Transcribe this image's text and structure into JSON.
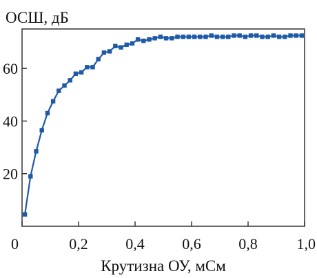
{
  "chart_data": {
    "type": "line",
    "title": "",
    "ylabel": "ОСШ, дБ",
    "xlabel": "Крутизна ОУ, мСм",
    "xlim": [
      0,
      1.0
    ],
    "ylim": [
      0,
      75
    ],
    "grid": false,
    "x_ticks": [
      {
        "value": 0,
        "label": "0"
      },
      {
        "value": 0.2,
        "label": "0,2"
      },
      {
        "value": 0.4,
        "label": "0,4"
      },
      {
        "value": 0.6,
        "label": "0,6"
      },
      {
        "value": 0.8,
        "label": "0,8"
      },
      {
        "value": 1.0,
        "label": "1,0"
      }
    ],
    "y_ticks": [
      {
        "value": 20,
        "label": "20"
      },
      {
        "value": 40,
        "label": "40"
      },
      {
        "value": 60,
        "label": "60"
      }
    ],
    "color": "#1f5aa6",
    "series": [
      {
        "x": [
          0.01,
          0.03,
          0.05,
          0.07,
          0.09,
          0.11,
          0.13,
          0.15,
          0.17,
          0.19,
          0.21,
          0.23,
          0.25,
          0.27,
          0.29,
          0.31,
          0.33,
          0.35,
          0.37,
          0.39,
          0.41,
          0.43,
          0.45,
          0.47,
          0.49,
          0.51,
          0.53,
          0.55,
          0.57,
          0.59,
          0.61,
          0.63,
          0.65,
          0.67,
          0.69,
          0.71,
          0.73,
          0.75,
          0.77,
          0.79,
          0.81,
          0.83,
          0.85,
          0.87,
          0.89,
          0.91,
          0.93,
          0.95,
          0.97,
          0.99
        ],
        "y": [
          4.5,
          19,
          28.5,
          36.5,
          43,
          47.5,
          51.5,
          53.5,
          55.5,
          58,
          58.5,
          60.5,
          60.5,
          63.5,
          66,
          66.5,
          68.5,
          68,
          69,
          69.5,
          71,
          70.5,
          71,
          71.5,
          72,
          71.5,
          71.5,
          72,
          72,
          72,
          72,
          72,
          72,
          72.5,
          72,
          72,
          72,
          72.5,
          72.5,
          72,
          72.5,
          72.5,
          72,
          72,
          72.5,
          72,
          72,
          72.5,
          72.5,
          72.5
        ]
      }
    ]
  }
}
